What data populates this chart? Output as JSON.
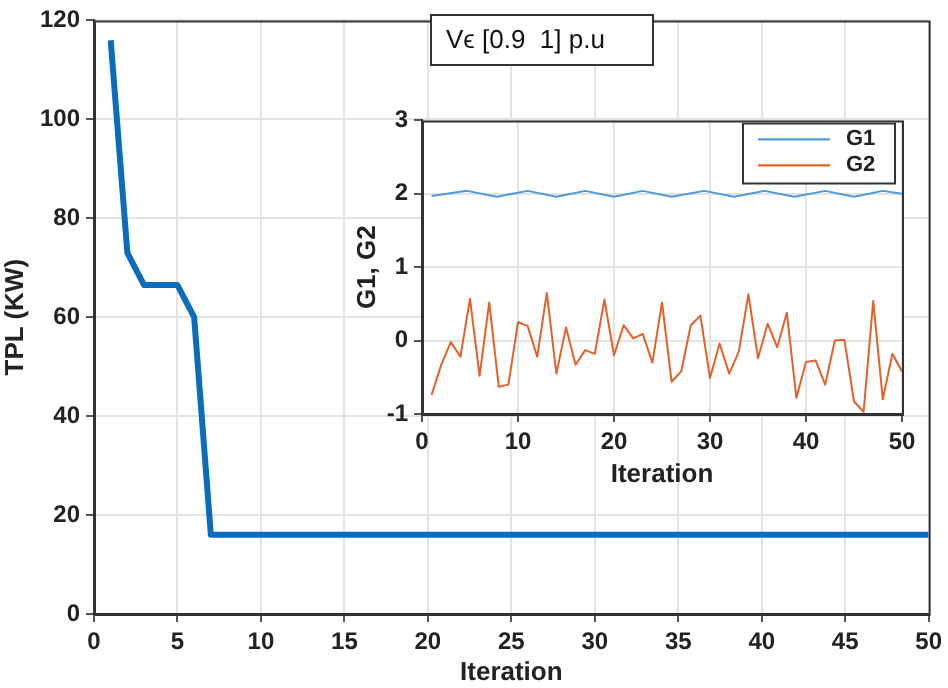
{
  "chart_data": [
    {
      "type": "line",
      "xlabel": "Iteration",
      "ylabel": "TPL (KW)",
      "x": [
        1,
        2,
        3,
        5,
        6,
        7,
        50
      ],
      "series": [
        {
          "color": "#0a6cbd",
          "values": [
            116,
            73,
            66.5,
            66.5,
            60,
            16,
            16
          ]
        }
      ],
      "xlim": [
        0,
        50
      ],
      "xticks": [
        0,
        5,
        10,
        15,
        20,
        25,
        30,
        35,
        40,
        45,
        50
      ],
      "ylim": [
        0,
        120
      ],
      "yticks": [
        0,
        20,
        40,
        60,
        80,
        100,
        120
      ],
      "grid": true,
      "legend": false,
      "annotations": [
        "Vϵ [0.9  1] p.u"
      ]
    },
    {
      "type": "line",
      "xlabel": "Iteration",
      "ylabel": "G1, G2",
      "x": [
        1,
        2,
        3,
        4,
        5,
        6,
        7,
        8,
        9,
        10,
        11,
        12,
        13,
        14,
        15,
        16,
        17,
        18,
        19,
        20,
        21,
        22,
        23,
        24,
        25,
        26,
        27,
        28,
        29,
        30,
        31,
        32,
        33,
        34,
        35,
        36,
        37,
        38,
        39,
        40,
        41,
        42,
        43,
        44,
        45,
        46,
        47,
        48,
        49,
        50
      ],
      "series": [
        {
          "name": "G1",
          "color": "#4d9ad6",
          "x": [
            1,
            4.7,
            7.8,
            11,
            14,
            17,
            20,
            23,
            26,
            29.4,
            32.5,
            35.7,
            38.8,
            42,
            45,
            48,
            50
          ],
          "values": [
            1.97,
            2.04,
            1.96,
            2.04,
            1.96,
            2.04,
            1.96,
            2.04,
            1.96,
            2.04,
            1.96,
            2.04,
            1.96,
            2.04,
            1.96,
            2.04,
            2.0
          ]
        },
        {
          "name": "G2",
          "color": "#e0622a",
          "values": [
            -0.74,
            -0.33,
            -0.02,
            -0.22,
            0.57,
            -0.48,
            0.52,
            -0.63,
            -0.6,
            0.25,
            0.2,
            -0.22,
            0.65,
            -0.45,
            0.18,
            -0.33,
            -0.13,
            -0.18,
            0.56,
            -0.2,
            0.21,
            0.03,
            0.09,
            -0.3,
            0.52,
            -0.56,
            -0.42,
            0.21,
            0.34,
            -0.51,
            -0.04,
            -0.45,
            -0.15,
            0.63,
            -0.24,
            0.23,
            -0.09,
            0.38,
            -0.78,
            -0.29,
            -0.27,
            -0.6,
            0.0,
            0.01,
            -0.83,
            -0.97,
            0.54,
            -0.8,
            -0.18,
            -0.42
          ]
        }
      ],
      "xlim": [
        0,
        50
      ],
      "xticks": [
        0,
        10,
        20,
        30,
        40,
        50
      ],
      "ylim": [
        -1,
        3
      ],
      "yticks": [
        -1,
        0,
        1,
        2,
        3
      ],
      "grid": true,
      "legend": "top right"
    }
  ]
}
